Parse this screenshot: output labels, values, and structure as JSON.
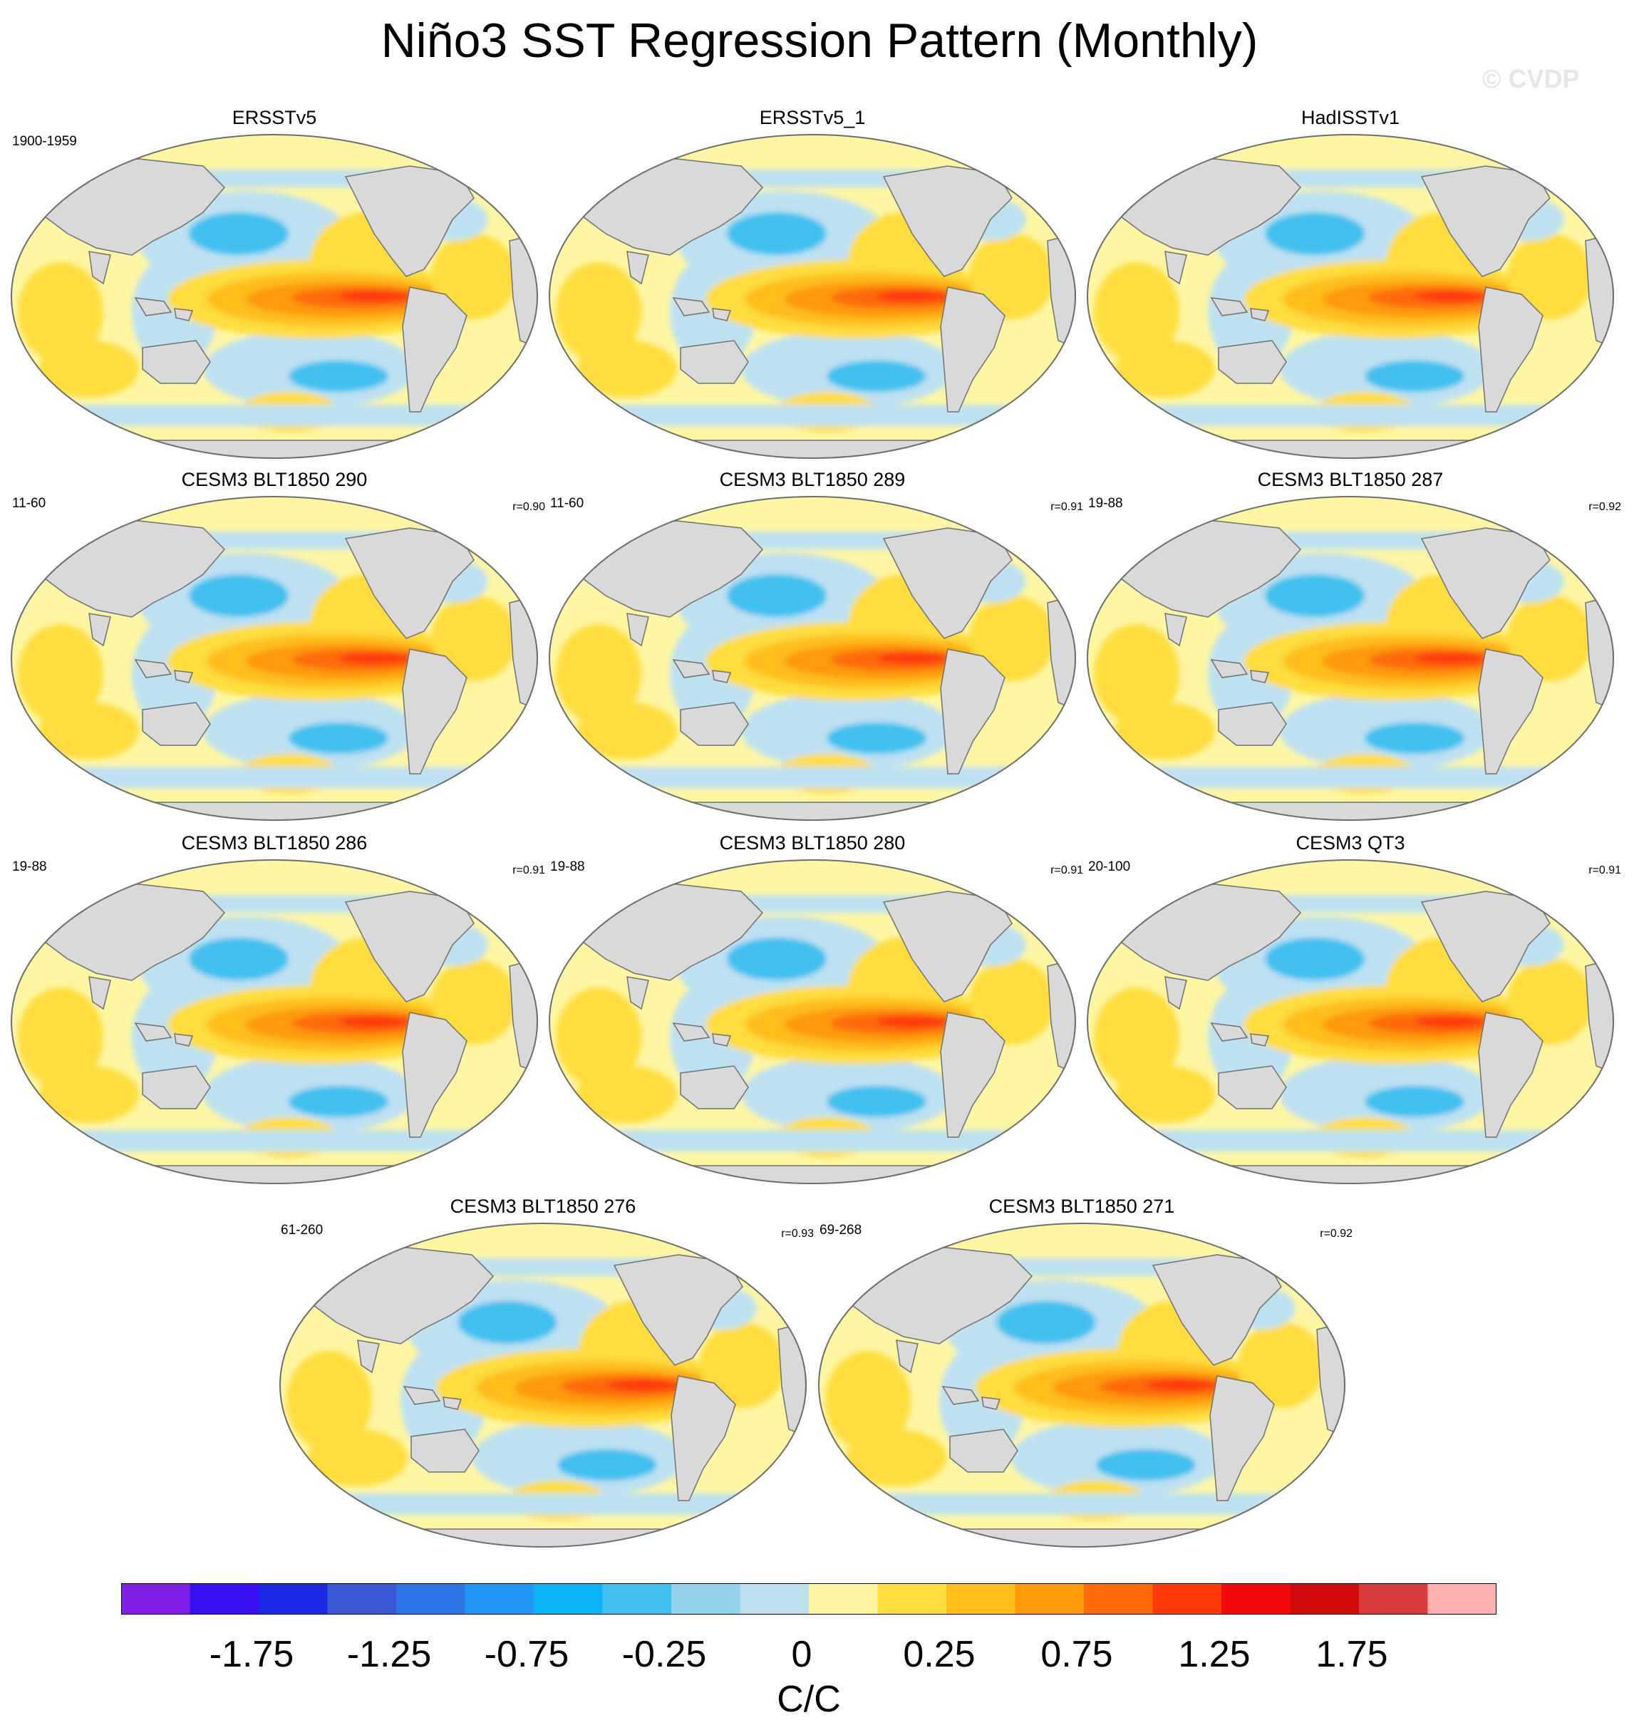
{
  "title": "Niño3 SST Regression Pattern (Monthly)",
  "watermark": "© CVDP",
  "panels": [
    {
      "name": "ERSSTv5",
      "period": "1900-1959",
      "corr": ""
    },
    {
      "name": "ERSSTv5_1",
      "period": "",
      "corr": ""
    },
    {
      "name": "HadISSTv1",
      "period": "",
      "corr": ""
    },
    {
      "name": "CESM3 BLT1850 290",
      "period": "11-60",
      "corr": "r=0.90"
    },
    {
      "name": "CESM3 BLT1850 289",
      "period": "11-60",
      "corr": "r=0.91"
    },
    {
      "name": "CESM3 BLT1850 287",
      "period": "19-88",
      "corr": "r=0.92"
    },
    {
      "name": "CESM3 BLT1850 286",
      "period": "19-88",
      "corr": "r=0.91"
    },
    {
      "name": "CESM3 BLT1850 280",
      "period": "19-88",
      "corr": "r=0.91"
    },
    {
      "name": "CESM3 QT3",
      "period": "20-100",
      "corr": "r=0.91"
    },
    {
      "name": "CESM3 BLT1850 276",
      "period": "61-260",
      "corr": "r=0.93"
    },
    {
      "name": "CESM3 BLT1850 271",
      "period": "69-268",
      "corr": "r=0.92"
    }
  ],
  "colorbar": {
    "colors": [
      "#7f1fe8",
      "#3a10f2",
      "#1a2ae6",
      "#3a5ad8",
      "#2e74e8",
      "#2096f5",
      "#0ab4f5",
      "#40c0ef",
      "#92d0ec",
      "#bde1f1",
      "#fff6a3",
      "#ffdd3c",
      "#ffbe1a",
      "#ff9a0a",
      "#ff6a0a",
      "#ff3a0a",
      "#f20a0a",
      "#d00a0a",
      "#d83a3a",
      "#ffb0b0"
    ],
    "labels": [
      "-1.75",
      "-1.25",
      "-0.75",
      "-0.25",
      "0",
      "0.25",
      "0.75",
      "1.25",
      "1.75"
    ],
    "units": "C/C"
  },
  "colors": {
    "land": "#d9d9d9",
    "coast": "#707070"
  }
}
